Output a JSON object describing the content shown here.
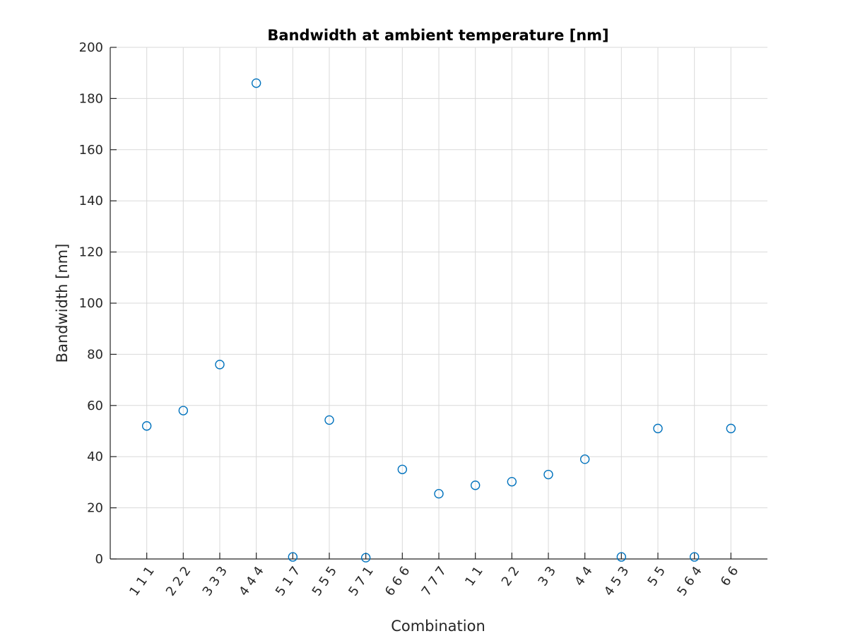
{
  "chart_data": {
    "type": "scatter",
    "title": "Bandwidth at ambient temperature [nm]",
    "xlabel": "Combination",
    "ylabel": "Bandwidth [nm]",
    "categories": [
      "1 1 1",
      "2 2 2",
      "3 3 3",
      "4 4 4",
      "5 1 7",
      "5 5 5",
      "5 7 1",
      "6 6 6",
      "7 7 7",
      "1 1",
      "2 2",
      "3 3",
      "4 4",
      "4 5 3",
      "5 5",
      "5 6 4",
      "6 6"
    ],
    "values": [
      52,
      58,
      76,
      186,
      0.8,
      54.3,
      0.5,
      35,
      25.5,
      28.8,
      30.2,
      33,
      39,
      0.8,
      51,
      0.8,
      51
    ],
    "ylim": [
      0,
      200
    ],
    "yticks": [
      0,
      20,
      40,
      60,
      80,
      100,
      120,
      140,
      160,
      180,
      200
    ],
    "grid": true,
    "marker": "circle",
    "color": "#0072bd"
  }
}
